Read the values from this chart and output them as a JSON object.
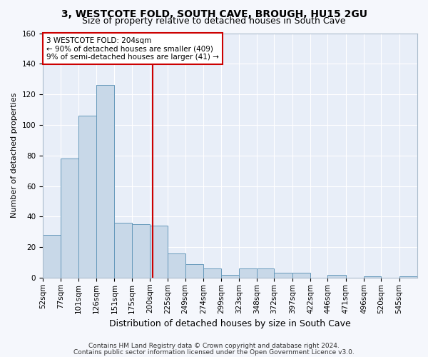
{
  "title": "3, WESTCOTE FOLD, SOUTH CAVE, BROUGH, HU15 2GU",
  "subtitle": "Size of property relative to detached houses in South Cave",
  "xlabel": "Distribution of detached houses by size in South Cave",
  "ylabel": "Number of detached properties",
  "footnote1": "Contains HM Land Registry data © Crown copyright and database right 2024.",
  "footnote2": "Contains public sector information licensed under the Open Government Licence v3.0.",
  "annotation_line1": "3 WESTCOTE FOLD: 204sqm",
  "annotation_line2": "← 90% of detached houses are smaller (409)",
  "annotation_line3": "9% of semi-detached houses are larger (41) →",
  "bar_edges": [
    52,
    77,
    101,
    126,
    151,
    175,
    200,
    225,
    249,
    274,
    299,
    323,
    348,
    372,
    397,
    422,
    446,
    471,
    496,
    520,
    545
  ],
  "bar_heights": [
    28,
    78,
    106,
    126,
    36,
    35,
    34,
    16,
    9,
    6,
    2,
    6,
    6,
    3,
    3,
    0,
    2,
    0,
    1,
    0,
    1
  ],
  "bar_color": "#c8d8e8",
  "bar_edge_color": "#6699bb",
  "vline_x": 204,
  "vline_color": "#cc0000",
  "annotation_box_color": "#cc0000",
  "annotation_text_color": "#000000",
  "ylim": [
    0,
    160
  ],
  "yticks": [
    0,
    20,
    40,
    60,
    80,
    100,
    120,
    140,
    160
  ],
  "background_color": "#e8eef8",
  "grid_color": "#ffffff",
  "fig_background": "#f5f7fc",
  "title_fontsize": 10,
  "subtitle_fontsize": 9,
  "xlabel_fontsize": 9,
  "ylabel_fontsize": 8,
  "tick_fontsize": 7.5,
  "annotation_fontsize": 7.5,
  "footnote_fontsize": 6.5
}
